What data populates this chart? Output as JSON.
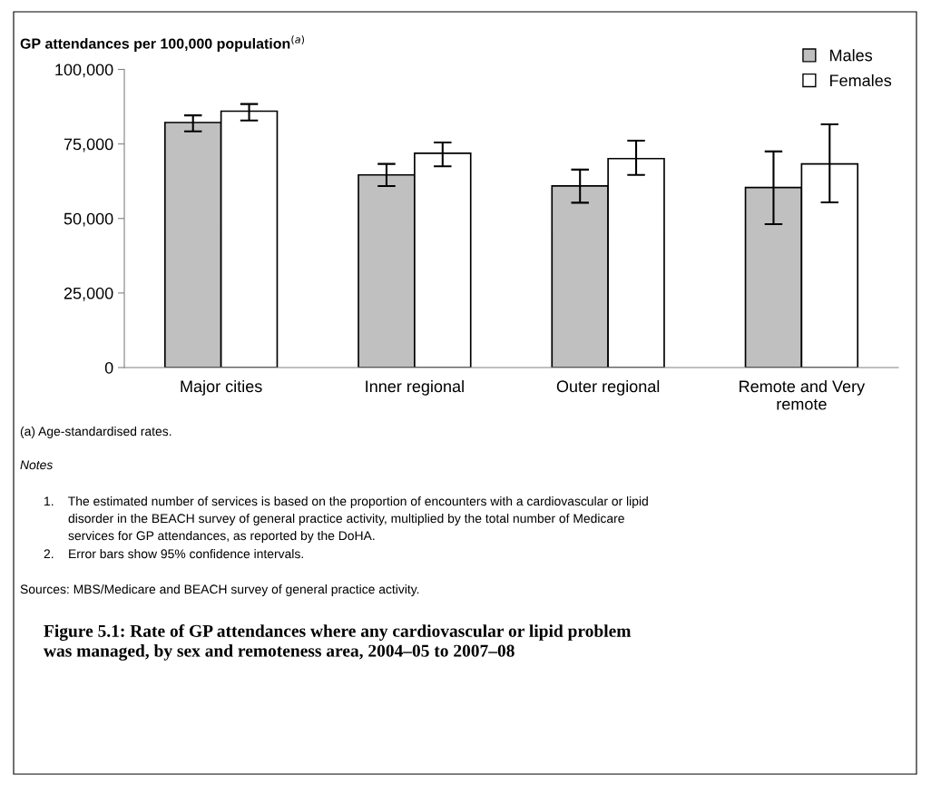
{
  "chart_data": {
    "type": "bar",
    "title": "Figure 5.1: Rate of GP attendances where any cardiovascular or lipid problem\nwas managed, by sex and remoteness area, 2004–05 to 2007–08",
    "ylabel": "GP attendances per 100,000 population$^{(a)}$",
    "categories": [
      "Major cities",
      "Inner regional",
      "Outer regional",
      "Remote and Very\nremote"
    ],
    "series": [
      {
        "name": "Males",
        "color": "#c0c0c0",
        "values": [
          82200,
          64600,
          60900,
          60400
        ],
        "errors": [
          [
            79200,
            84600
          ],
          [
            60900,
            68300
          ],
          [
            55300,
            66400
          ],
          [
            48100,
            72500
          ]
        ]
      },
      {
        "name": "Females",
        "color": "#ffffff",
        "values": [
          86000,
          71900,
          70100,
          68300
        ],
        "errors": [
          [
            82900,
            88400
          ],
          [
            67500,
            75500
          ],
          [
            64600,
            76100
          ],
          [
            55400,
            81600
          ]
        ]
      }
    ],
    "ylim": [
      0,
      100000
    ],
    "yticks": [
      {
        "value": 0,
        "label": "0"
      },
      {
        "value": 25000,
        "label": "25,000"
      },
      {
        "value": 50000,
        "label": "50,000"
      },
      {
        "value": 75000,
        "label": "75,000"
      },
      {
        "value": 100000,
        "label": "100,000"
      }
    ],
    "grid": false,
    "legend": "top right",
    "annotations": [
      "(a) Age-standardised rates.",
      "Notes",
      "1.    The estimated number of services is based on the proportion of encounters with a cardiovascular or lipid\n       disorder in the BEACH survey of general practice activity, multiplied by the total number of Medicare\n       services for GP attendances, as reported by the DoHA.",
      "2.    Error bars show 95% confidence intervals.",
      "Sources: MBS/Medicare and BEACH survey of general practice activity."
    ]
  }
}
